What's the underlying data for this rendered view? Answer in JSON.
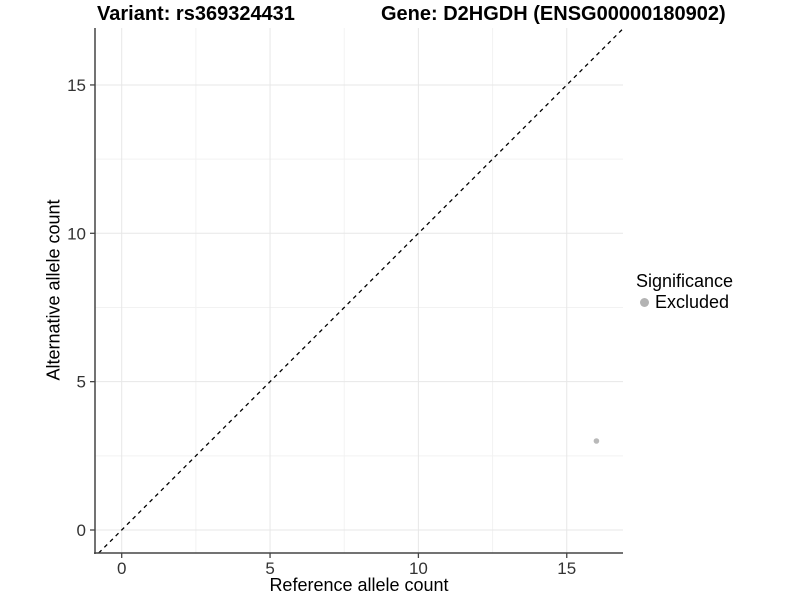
{
  "chart_data": {
    "type": "scatter",
    "title_left": "Variant: rs369324431",
    "title_right": "Gene: D2HGDH (ENSG00000180902)",
    "xlabel": "Reference allele count",
    "ylabel": "Alternative allele count",
    "xlim": [
      -0.9,
      16.9
    ],
    "ylim": [
      -0.8,
      16.9
    ],
    "x_ticks": [
      0,
      5,
      10,
      15
    ],
    "y_ticks": [
      0,
      5,
      10,
      15
    ],
    "x_minor_ticks": [
      2.5,
      7.5,
      12.5
    ],
    "y_minor_ticks": [
      2.5,
      7.5,
      12.5
    ],
    "grid": true,
    "points": [
      {
        "x": 16,
        "y": 3,
        "series": "Excluded"
      }
    ],
    "identity_line": {
      "style": "dashed",
      "slope": 1,
      "intercept": 0
    },
    "legend": {
      "title": "Significance",
      "position": "right",
      "entries": [
        {
          "label": "Excluded",
          "color": "#b3b3b3"
        }
      ]
    },
    "colors": {
      "background": "#ffffff",
      "grid_major": "#e7e7e7",
      "grid_minor": "#f2f2f2",
      "axis_line": "#454545",
      "tick_text": "#333333",
      "point": "#b9b9b9",
      "identity_line": "#000000"
    }
  }
}
